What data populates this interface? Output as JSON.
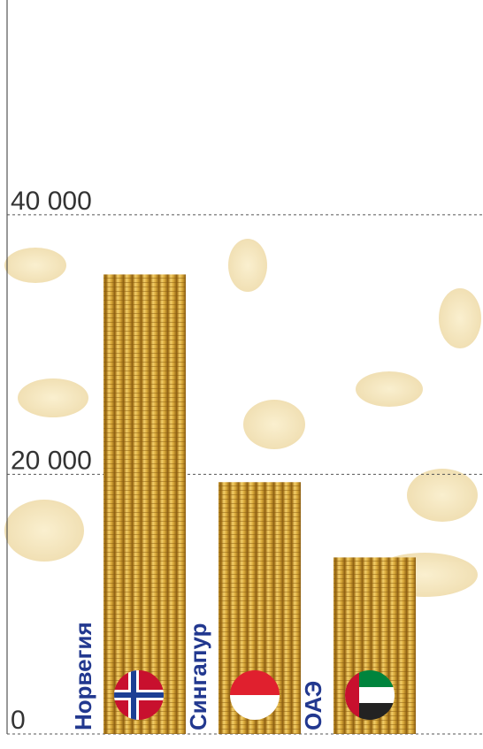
{
  "chart_data": {
    "type": "bar",
    "categories": [
      "Норвегия",
      "Сингапур",
      "ОАЭ"
    ],
    "values": [
      35400,
      19400,
      13600
    ],
    "color": "#d9a93a",
    "ylim": [
      0,
      56000
    ],
    "yticks": [
      0,
      {
        "value": 20000,
        "label": "20 000"
      },
      {
        "value": 40000,
        "label": "40 000"
      }
    ],
    "grid": true
  }
}
